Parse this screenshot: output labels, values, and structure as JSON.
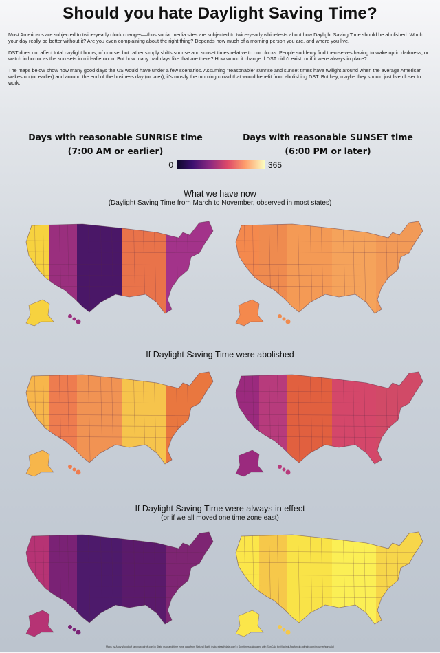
{
  "title": "Should you hate Daylight Saving Time?",
  "intro": [
    "Most Americans are subjected to twice-yearly clock changes—thus social media sites are subjected to twice-yearly whinefests about how Daylight Saving Time should be abolished. Would your day really be better without it? Are you even complaining about the right thing? Depends how much of a morning person you are, and where you live.",
    "DST does not affect total daylight hours, of course, but rather simply shifts sunrise and sunset times relative to our clocks. People suddenly find themselves having to wake up in darkness, or watch in horror as the sun sets in mid-afternoon. But how many bad days like that are there? How would it change if DST didn't exist, or if it were always in place?",
    "The maps below show how many good days the US would have under a few scenarios. Assuming \"reasonable\" sunrise and sunset times have twilight around when the average American wakes up (or earlier) and around the end of the business day (or later), it's mostly the morning crowd that would benefit from abolishing DST. But hey, maybe they should just live closer to work."
  ],
  "legend": {
    "sunrise_title": "Days with reasonable SUNRISE time",
    "sunrise_sub": "(7:00 AM or earlier)",
    "sunset_title": "Days with reasonable SUNSET time",
    "sunset_sub": "(6:00 PM or later)",
    "min": "0",
    "max": "365",
    "colors": [
      "#0d0829",
      "#3b0f6f",
      "#8c2981",
      "#de4968",
      "#fe9f6d",
      "#fcfdbf"
    ]
  },
  "sections": [
    {
      "title": "What we have now",
      "subtitle": "(Daylight Saving Time from March to November, observed in most states)"
    },
    {
      "title": "If Daylight Saving Time were abolished",
      "subtitle": ""
    },
    {
      "title": "If Daylight Saving Time were always in effect",
      "subtitle": "(or if we all moved one time zone east)"
    }
  ],
  "maps": [
    {
      "scenario": "current",
      "metric": "sunrise",
      "zone_colors": [
        "#f7d23f",
        "#9a2f7e",
        "#4a1767",
        "#e9734a",
        "#a3338a"
      ]
    },
    {
      "scenario": "current",
      "metric": "sunset",
      "zone_colors": [
        "#f4894d",
        "#ef8b4f",
        "#f49a55",
        "#f5a35b",
        "#f29a57"
      ]
    },
    {
      "scenario": "abolished",
      "metric": "sunrise",
      "zone_colors": [
        "#f7b64b",
        "#ee7c4f",
        "#f19353",
        "#f6c44c",
        "#e9773f"
      ]
    },
    {
      "scenario": "abolished",
      "metric": "sunset",
      "zone_colors": [
        "#9b2a7e",
        "#b73b7c",
        "#e1603f",
        "#d4476a",
        "#d14a67"
      ]
    },
    {
      "scenario": "always",
      "metric": "sunrise",
      "zone_colors": [
        "#b63374",
        "#7a2275",
        "#4d1a6b",
        "#5a1a6b",
        "#7e2573"
      ]
    },
    {
      "scenario": "always",
      "metric": "sunset",
      "zone_colors": [
        "#fbe64a",
        "#f6c84a",
        "#f9e348",
        "#fbef55",
        "#f7d64a"
      ]
    }
  ],
  "footer": "Maps by Andy Woodruff (andywoodruff.com) • State map and time zone data from Natural Earth (naturalearthdata.com) • Sun times calculated with SunCalc by Vladimir Agafonkin (github.com/mourner/suncalc)"
}
